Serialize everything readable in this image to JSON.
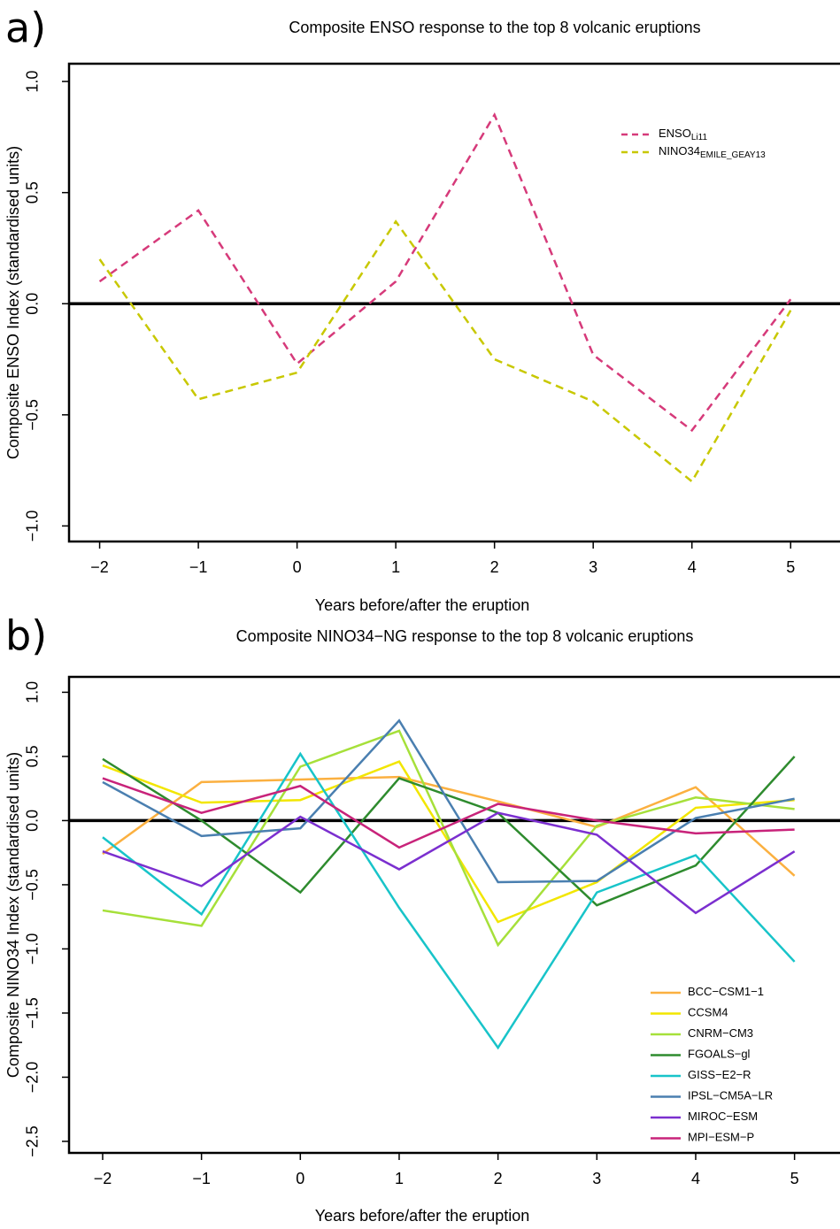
{
  "chart_data": [
    {
      "type": "line",
      "panel_label": "a)",
      "title": "Composite ENSO response to the top 8 volcanic eruptions",
      "x_label": "Years before/after the eruption",
      "y_label": "Composite ENSO Index (standardised units)",
      "x": [
        -2,
        -1,
        0,
        1,
        2,
        3,
        4,
        5
      ],
      "dashed": true,
      "reference_line": 0,
      "series": [
        {
          "name": "ENSO",
          "name_subscript": "Li11",
          "color": "#d63a7a",
          "values": [
            0.1,
            0.42,
            -0.27,
            0.1,
            0.85,
            -0.23,
            -0.57,
            0.02
          ]
        },
        {
          "name": "NINO34",
          "name_subscript": "EMILE_GEAY13",
          "color": "#c8c800",
          "values": [
            0.2,
            -0.43,
            -0.31,
            0.37,
            -0.25,
            -0.44,
            -0.8,
            -0.03
          ]
        }
      ],
      "xlim": [
        -2.31,
        5.5
      ],
      "ylim": [
        -1.07,
        1.08
      ],
      "xticks": [
        {
          "value": -2,
          "label": "−2"
        },
        {
          "value": -1,
          "label": "−1"
        },
        {
          "value": 0,
          "label": "0"
        },
        1,
        2,
        3,
        4,
        5
      ],
      "yticks": [
        {
          "value": 1,
          "label": "1.0"
        },
        0.5,
        {
          "value": 0,
          "label": "0.0"
        },
        {
          "value": -0.5,
          "label": "−0.5"
        },
        {
          "value": -1,
          "label": "−1.0"
        }
      ]
    },
    {
      "type": "line",
      "panel_label": "b)",
      "title": "Composite NINO34−NG response to the top 8 volcanic eruptions",
      "x_label": "Years before/after the eruption",
      "y_label": "Composite NINO34 Index (standardised units)",
      "x": [
        -2,
        -1,
        0,
        1,
        2,
        3,
        4,
        5
      ],
      "dashed": false,
      "reference_line": 0,
      "series": [
        {
          "name": "BCC−CSM1−1",
          "color": "#fbb040",
          "values": [
            -0.26,
            0.3,
            0.32,
            0.34,
            0.15,
            -0.05,
            0.26,
            -0.43
          ]
        },
        {
          "name": "CCSM4",
          "color": "#f2e600",
          "values": [
            0.43,
            0.14,
            0.16,
            0.46,
            -0.79,
            -0.48,
            0.1,
            0.16
          ]
        },
        {
          "name": "CNRM−CM3",
          "color": "#a6e03a",
          "values": [
            -0.7,
            -0.82,
            0.42,
            0.7,
            -0.97,
            -0.04,
            0.18,
            0.09
          ]
        },
        {
          "name": "FGOALS−gl",
          "color": "#2e8b2e",
          "values": [
            0.48,
            0.0,
            -0.56,
            0.33,
            0.06,
            -0.66,
            -0.35,
            0.5
          ]
        },
        {
          "name": "GISS−E2−R",
          "color": "#18c4c9",
          "values": [
            -0.13,
            -0.73,
            0.52,
            -0.68,
            -1.77,
            -0.56,
            -0.27,
            -1.1
          ]
        },
        {
          "name": "IPSL−CM5A−LR",
          "color": "#4a7fb0",
          "values": [
            0.3,
            -0.12,
            -0.06,
            0.78,
            -0.48,
            -0.47,
            0.02,
            0.17
          ]
        },
        {
          "name": "MIROC−ESM",
          "color": "#7b2fcf",
          "values": [
            -0.24,
            -0.51,
            0.03,
            -0.38,
            0.06,
            -0.11,
            -0.72,
            -0.24
          ]
        },
        {
          "name": "MPI−ESM−P",
          "color": "#c8237a",
          "values": [
            0.33,
            0.06,
            0.27,
            -0.21,
            0.13,
            0.0,
            -0.1,
            -0.07
          ]
        }
      ],
      "xlim": [
        -2.34,
        5.46
      ],
      "ylim": [
        -2.59,
        1.12
      ],
      "xticks": [
        {
          "value": -2,
          "label": "−2"
        },
        {
          "value": -1,
          "label": "−1"
        },
        {
          "value": 0,
          "label": "0"
        },
        1,
        2,
        3,
        4,
        5
      ],
      "yticks": [
        {
          "value": 1,
          "label": "1.0"
        },
        0.5,
        {
          "value": 0,
          "label": "0.0"
        },
        {
          "value": -0.5,
          "label": "−0.5"
        },
        {
          "value": -1,
          "label": "−1.0"
        },
        {
          "value": -1.5,
          "label": "−1.5"
        },
        {
          "value": -2,
          "label": "−2.0"
        },
        {
          "value": -2.5,
          "label": "−2.5"
        }
      ]
    }
  ]
}
